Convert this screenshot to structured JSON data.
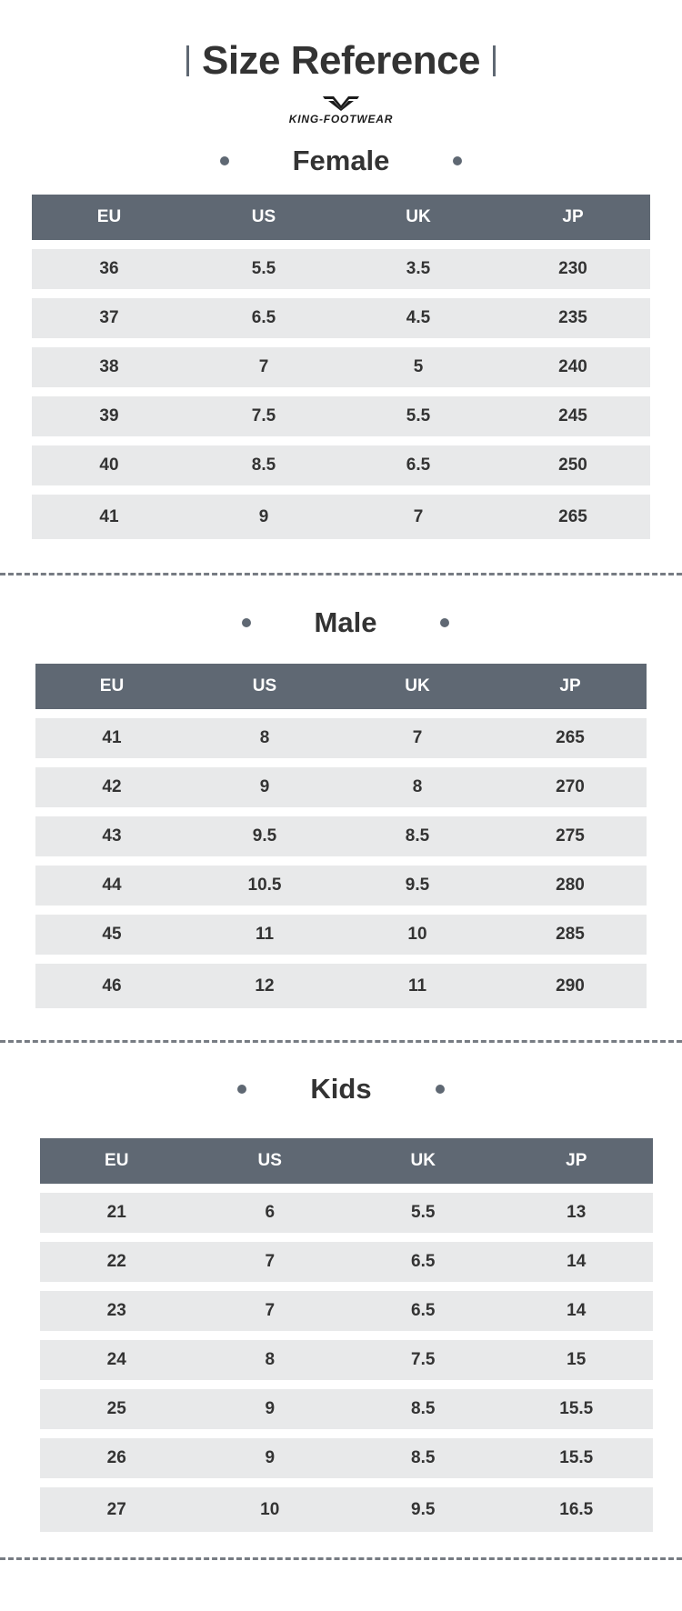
{
  "title": "Size Reference",
  "brand": "KING-FOOTWEAR",
  "columns": [
    "EU",
    "US",
    "UK",
    "JP"
  ],
  "sections": [
    {
      "label": "Female",
      "rows": [
        [
          "36",
          "5.5",
          "3.5",
          "230"
        ],
        [
          "37",
          "6.5",
          "4.5",
          "235"
        ],
        [
          "38",
          "7",
          "5",
          "240"
        ],
        [
          "39",
          "7.5",
          "5.5",
          "245"
        ],
        [
          "40",
          "8.5",
          "6.5",
          "250"
        ],
        [
          "41",
          "9",
          "7",
          "265"
        ]
      ]
    },
    {
      "label": "Male",
      "rows": [
        [
          "41",
          "8",
          "7",
          "265"
        ],
        [
          "42",
          "9",
          "8",
          "270"
        ],
        [
          "43",
          "9.5",
          "8.5",
          "275"
        ],
        [
          "44",
          "10.5",
          "9.5",
          "280"
        ],
        [
          "45",
          "11",
          "10",
          "285"
        ],
        [
          "46",
          "12",
          "11",
          "290"
        ]
      ]
    },
    {
      "label": "Kids",
      "rows": [
        [
          "21",
          "6",
          "5.5",
          "13"
        ],
        [
          "22",
          "7",
          "6.5",
          "14"
        ],
        [
          "23",
          "7",
          "6.5",
          "14"
        ],
        [
          "24",
          "8",
          "7.5",
          "15"
        ],
        [
          "25",
          "9",
          "8.5",
          "15.5"
        ],
        [
          "26",
          "9",
          "8.5",
          "15.5"
        ],
        [
          "27",
          "10",
          "9.5",
          "16.5"
        ]
      ]
    }
  ]
}
